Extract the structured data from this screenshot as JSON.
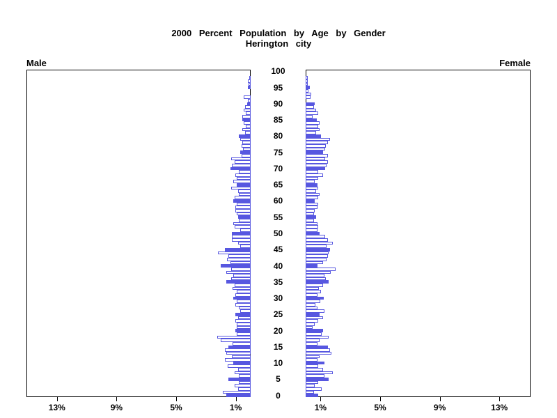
{
  "title": {
    "line1": "2000 Percent Population by Age by Gender",
    "line2": "Herington city"
  },
  "labels": {
    "male": "Male",
    "female": "Female"
  },
  "axis": {
    "age_tick_labels": [
      "100",
      "95",
      "90",
      "85",
      "80",
      "75",
      "70",
      "65",
      "60",
      "55",
      "50",
      "45",
      "40",
      "35",
      "30",
      "25",
      "20",
      "15",
      "10",
      "5",
      "0"
    ],
    "male_pct_tick_labels": [
      "13%",
      "9%",
      "5%",
      "1%"
    ],
    "female_pct_tick_labels": [
      "1%",
      "5%",
      "9%",
      "13%"
    ],
    "male_pct_tick_values": [
      13,
      9,
      5,
      1
    ],
    "female_pct_tick_values": [
      1,
      5,
      9,
      13
    ],
    "xlim": [
      0,
      15
    ]
  },
  "colors": {
    "bar_outline": "#5757e0",
    "bar_highlight_fill": "#5757e0",
    "bar_regular_fill": "#ffffff",
    "frame": "#000000",
    "text": "#000000",
    "background": "#ffffff"
  },
  "chart_data": {
    "type": "bar",
    "subtype": "population_pyramid",
    "title": "2000 Percent Population by Age by Gender",
    "subtitle": "Herington city",
    "x_unit": "percent of population",
    "age_min": 0,
    "age_max": 100,
    "age_step": 1,
    "highlight_every": 5,
    "xlim": [
      0,
      15
    ],
    "legend_position": "none",
    "grid": false,
    "series": [
      {
        "name": "Male",
        "side": "left",
        "values_by_age": [
          1.63,
          1.87,
          0.86,
          1.09,
          0.78,
          1.48,
          0.78,
          1.09,
          0.86,
          1.56,
          1.17,
          1.71,
          1.25,
          1.63,
          1.71,
          1.48,
          1.2,
          2.02,
          2.26,
          0.93,
          1.01,
          0.93,
          0.93,
          1.01,
          0.86,
          1.01,
          0.7,
          0.78,
          1.04,
          0.93,
          1.17,
          1.04,
          0.93,
          1.2,
          1.09,
          1.63,
          1.32,
          1.17,
          1.63,
          1.32,
          2.02,
          1.35,
          1.6,
          1.51,
          2.18,
          1.71,
          0.7,
          0.86,
          1.25,
          1.25,
          1.25,
          0.7,
          1.09,
          1.17,
          0.78,
          0.86,
          0.93,
          1.01,
          1.01,
          0.93,
          1.17,
          1.09,
          0.78,
          0.86,
          1.32,
          0.93,
          1.17,
          0.93,
          1.01,
          0.78,
          1.37,
          1.25,
          1.09,
          1.32,
          0.62,
          0.7,
          0.5,
          0.62,
          0.55,
          0.7,
          0.78,
          0.39,
          0.55,
          0.31,
          0.47,
          0.55,
          0.55,
          0.31,
          0.47,
          0.39,
          0.23,
          0.2,
          0.47,
          0.0,
          0.0,
          0.2,
          0.12,
          0.2,
          0.08,
          0.0,
          0.0
        ]
      },
      {
        "name": "Female",
        "side": "right",
        "values_by_age": [
          0.83,
          0.55,
          1.09,
          0.62,
          0.86,
          1.53,
          1.25,
          1.81,
          1.17,
          0.86,
          1.25,
          0.78,
          0.93,
          1.71,
          1.64,
          1.48,
          0.78,
          0.93,
          1.56,
          1.09,
          1.17,
          0.47,
          0.62,
          0.86,
          1.17,
          0.95,
          1.25,
          0.78,
          0.67,
          0.98,
          1.21,
          0.78,
          1.03,
          0.87,
          1.15,
          1.56,
          1.37,
          1.25,
          1.68,
          2.0,
          0.81,
          1.17,
          1.4,
          1.48,
          1.56,
          1.65,
          1.4,
          1.81,
          1.48,
          1.32,
          0.93,
          0.78,
          0.86,
          0.78,
          0.55,
          0.7,
          0.55,
          0.62,
          0.78,
          0.86,
          0.62,
          0.86,
          0.93,
          0.7,
          0.86,
          0.78,
          0.62,
          0.86,
          1.17,
          0.86,
          1.32,
          1.4,
          1.48,
          1.32,
          1.51,
          1.18,
          1.32,
          1.35,
          1.48,
          1.64,
          1.01,
          0.7,
          0.93,
          0.86,
          0.93,
          0.75,
          0.47,
          0.86,
          0.7,
          0.55,
          0.62,
          0.0,
          0.31,
          0.39,
          0.19,
          0.28,
          0.12,
          0.16,
          0.16,
          0.0,
          0.0
        ]
      }
    ]
  }
}
